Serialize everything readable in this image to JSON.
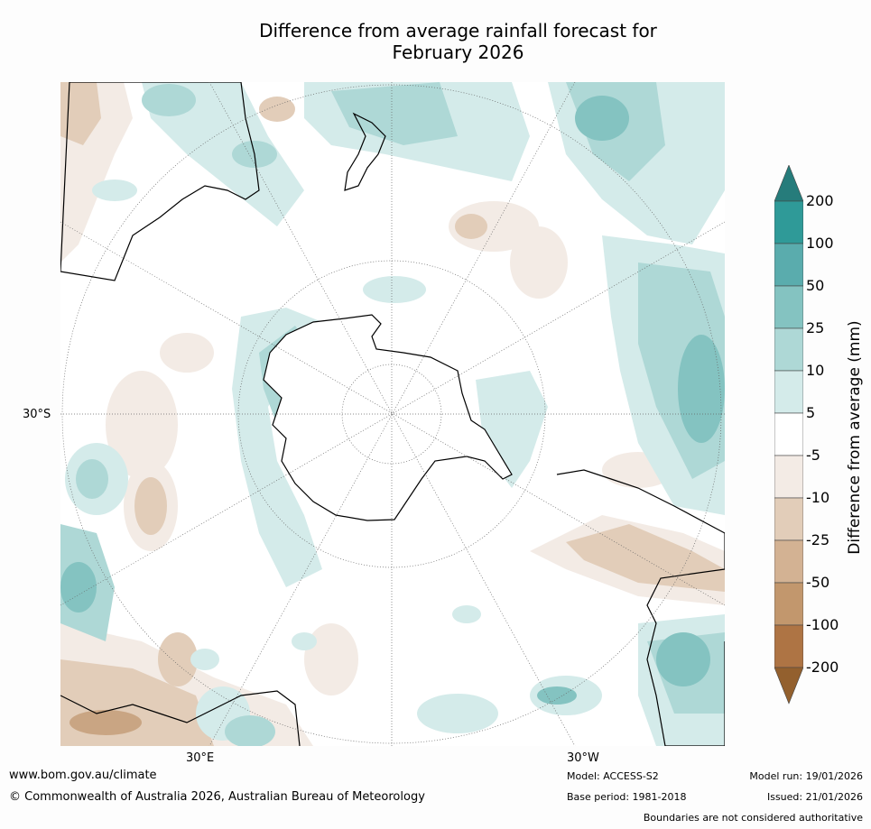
{
  "title_line1": "Difference from average rainfall forecast for",
  "title_line2": "February 2026",
  "map": {
    "projection": "south polar stereographic",
    "lat_label": "30°S",
    "lon_labels": [
      "30°E",
      "30°W"
    ],
    "colors": {
      "ocean_neutral": "#ffffff",
      "dry_light": "#f3ebe5",
      "dry_mid": "#e2cdb9",
      "dry_strong": "#c9a583",
      "wet_light": "#d4ebea",
      "wet_mid": "#aed8d6",
      "wet_strong": "#84c3c1",
      "coastline": "#000000"
    }
  },
  "colorbar": {
    "title": "Difference from average (mm)",
    "ticks": [
      "200",
      "100",
      "50",
      "25",
      "10",
      "5",
      "-5",
      "-10",
      "-25",
      "-50",
      "-100",
      "-200"
    ],
    "colors_top_to_bottom": [
      "#2f9a98",
      "#5aacad",
      "#84c3c1",
      "#aed8d6",
      "#d4ebea",
      "#ffffff",
      "#f3ebe5",
      "#e2cdb9",
      "#d3b293",
      "#c2976d",
      "#ae7444"
    ],
    "over_color": "#267c7b",
    "under_color": "#93602e"
  },
  "footer": {
    "url": "www.bom.gov.au/climate",
    "copyright": "© Commonwealth of Australia 2026, Australian Bureau of Meteorology",
    "model": "Model: ACCESS-S2",
    "base_period": "Base period: 1981-2018",
    "model_run": "Model run: 19/01/2026",
    "issued": "Issued: 21/01/2026",
    "disclaimer": "Boundaries are not considered authoritative"
  }
}
